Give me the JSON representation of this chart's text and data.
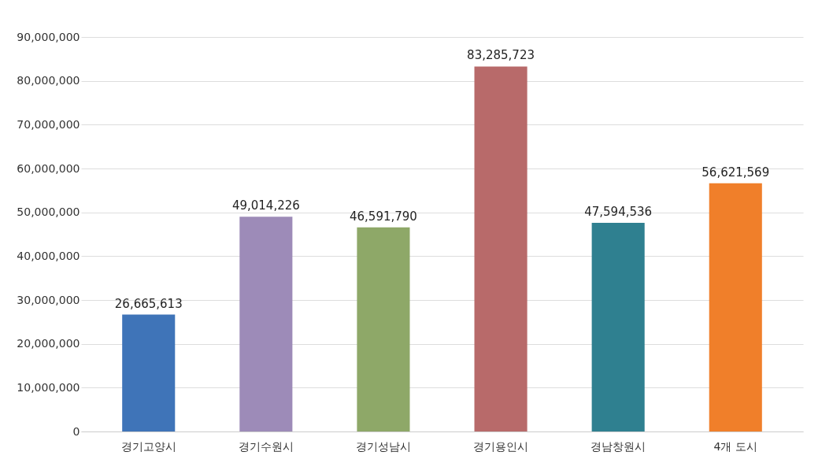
{
  "chart_data": {
    "type": "bar",
    "categories": [
      "경기고양시",
      "경기수원시",
      "경기성남시",
      "경기용인시",
      "경남창원시",
      "4개 도시"
    ],
    "values": [
      26665613,
      49014226,
      46591790,
      83285723,
      47594536,
      56621569
    ],
    "value_labels": [
      "26,665,613",
      "49,014,226",
      "46,591,790",
      "83,285,723",
      "47,594,536",
      "56,621,569"
    ],
    "colors": [
      "#3f74b8",
      "#9d8bb8",
      "#8ea868",
      "#b86a6a",
      "#2f8090",
      "#f07f2a"
    ],
    "ylim": [
      0,
      90000000
    ],
    "yticks": [
      0,
      {
        "value": 10000000,
        "label": "10,000,000"
      },
      {
        "value": 20000000,
        "label": "20,000,000"
      },
      {
        "value": 30000000,
        "label": "30,000,000"
      },
      {
        "value": 40000000,
        "label": "40,000,000"
      },
      {
        "value": 50000000,
        "label": "50,000,000"
      },
      {
        "value": 60000000,
        "label": "60,000,000"
      },
      {
        "value": 70000000,
        "label": "70,000,000"
      },
      {
        "value": 80000000,
        "label": "80,000,000"
      },
      {
        "value": 90000000,
        "label": "90,000,000"
      }
    ],
    "grid": "y"
  }
}
